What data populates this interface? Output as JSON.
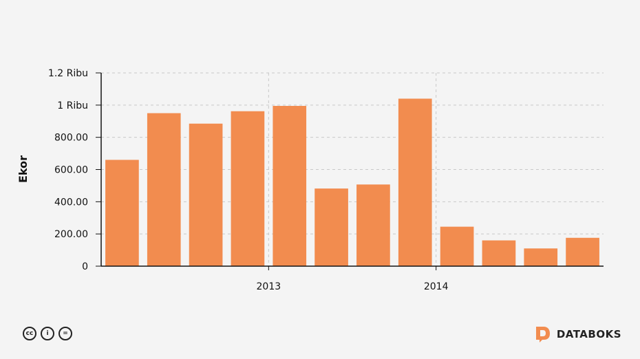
{
  "chart_data": {
    "type": "bar",
    "title": "",
    "ylabel": "Ekor",
    "xlabel": "",
    "ylim": [
      0,
      1200
    ],
    "y_ticks": [
      {
        "value": 0,
        "label": "0"
      },
      {
        "value": 200,
        "label": "200.00"
      },
      {
        "value": 400,
        "label": "400.00"
      },
      {
        "value": 600,
        "label": "600.00"
      },
      {
        "value": 800,
        "label": "800.00"
      },
      {
        "value": 1000,
        "label": "1 Ribu"
      },
      {
        "value": 1200,
        "label": "1.2 Ribu"
      }
    ],
    "x_ticks": [
      {
        "before_index": 4,
        "label": "2013"
      },
      {
        "before_index": 8,
        "label": "2014"
      }
    ],
    "values": [
      660,
      950,
      885,
      962,
      995,
      482,
      507,
      1040,
      245,
      160,
      110,
      176
    ],
    "bar_color": "#f28c4f",
    "grid": true
  },
  "footer": {
    "license_icons": [
      "cc-icon",
      "by-icon",
      "nd-icon"
    ],
    "license_glyphs": [
      "cc",
      "i",
      "="
    ],
    "brand": "DATABOKS",
    "brand_color": "#f28c4f"
  }
}
